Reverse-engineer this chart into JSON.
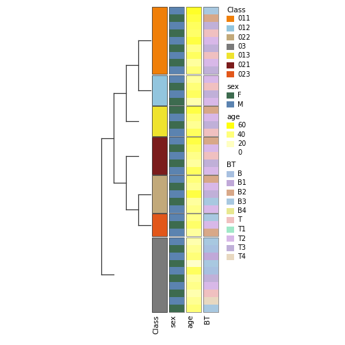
{
  "group_order": [
    "011",
    "012",
    "013",
    "021",
    "022",
    "023",
    "03"
  ],
  "group_sizes": {
    "011": 9,
    "012": 4,
    "013": 4,
    "021": 5,
    "022": 5,
    "023": 3,
    "03": 10
  },
  "class_colors": {
    "011": "#F07F09",
    "012": "#92C5DE",
    "013": "#EFE32E",
    "021": "#7B1C1C",
    "022": "#C2A97A",
    "023": "#E2571A",
    "03": "#7A7A7A"
  },
  "sex_pattern": {
    "011": [
      "M",
      "F",
      "M",
      "F",
      "M",
      "F",
      "M",
      "F",
      "M"
    ],
    "012": [
      "M",
      "F",
      "M",
      "F"
    ],
    "013": [
      "F",
      "M",
      "F",
      "M"
    ],
    "021": [
      "M",
      "F",
      "M",
      "F",
      "M"
    ],
    "022": [
      "M",
      "F",
      "M",
      "F",
      "M"
    ],
    "023": [
      "M",
      "F",
      "M"
    ],
    "03": [
      "M",
      "F",
      "M",
      "F",
      "M",
      "F",
      "M",
      "F",
      "M",
      "F"
    ]
  },
  "sex_colors": {
    "F": "#3D6B4F",
    "M": "#5B83B0"
  },
  "age_data": {
    "011": [
      60,
      55,
      50,
      48,
      55,
      42,
      50,
      38,
      45
    ],
    "012": [
      38,
      45,
      50,
      35
    ],
    "013": [
      55,
      45,
      40,
      50
    ],
    "021": [
      55,
      48,
      42,
      38,
      50
    ],
    "022": [
      45,
      40,
      55,
      38,
      42
    ],
    "023": [
      42,
      48,
      38
    ],
    "03": [
      35,
      40,
      45,
      30,
      50,
      38,
      42,
      35,
      40,
      45
    ]
  },
  "bt_data": {
    "011": [
      "B3",
      "B2",
      "T3",
      "T",
      "T2",
      "T3",
      "T",
      "T2",
      "T3"
    ],
    "012": [
      "T2",
      "T",
      "T3",
      "T2"
    ],
    "013": [
      "B2",
      "T2",
      "T3",
      "T"
    ],
    "021": [
      "B2",
      "T2",
      "T",
      "T3",
      "T2"
    ],
    "022": [
      "B2",
      "T2",
      "T3",
      "B3",
      "T2"
    ],
    "023": [
      "B3",
      "T2",
      "B2"
    ],
    "03": [
      "B3",
      "B",
      "B1",
      "B3",
      "B",
      "T3",
      "T2",
      "T",
      "T4",
      "B3"
    ]
  },
  "bt_colors": {
    "B": "#A8C0E0",
    "B1": "#C0A8D8",
    "B2": "#D8A888",
    "B3": "#A8C8E0",
    "B4": "#E8E890",
    "T": "#F0C0C0",
    "T1": "#A0E8C8",
    "T2": "#D8B8E8",
    "T3": "#C0B0D8",
    "T4": "#E8D8C0"
  },
  "class_legend_order": [
    "011",
    "012",
    "022",
    "03",
    "013",
    "021",
    "023"
  ],
  "class_legend_colors": {
    "011": "#F07F09",
    "012": "#92C5DE",
    "022": "#C2A97A",
    "03": "#7A7A7A",
    "013": "#EFE32E",
    "021": "#7B1C1C",
    "023": "#E2571A"
  },
  "bt_legend_order": [
    "B",
    "B1",
    "B2",
    "B3",
    "B4",
    "T",
    "T1",
    "T2",
    "T3",
    "T4"
  ],
  "bt_legend_colors": {
    "B": "#A8C0E0",
    "B1": "#C0A8D8",
    "B2": "#D8A888",
    "B3": "#A8C8E0",
    "B4": "#E8E890",
    "T": "#F0C0C0",
    "T1": "#A0E8C8",
    "T2": "#D8B8E8",
    "T3": "#C0B0D8",
    "T4": "#E8D8C0"
  }
}
